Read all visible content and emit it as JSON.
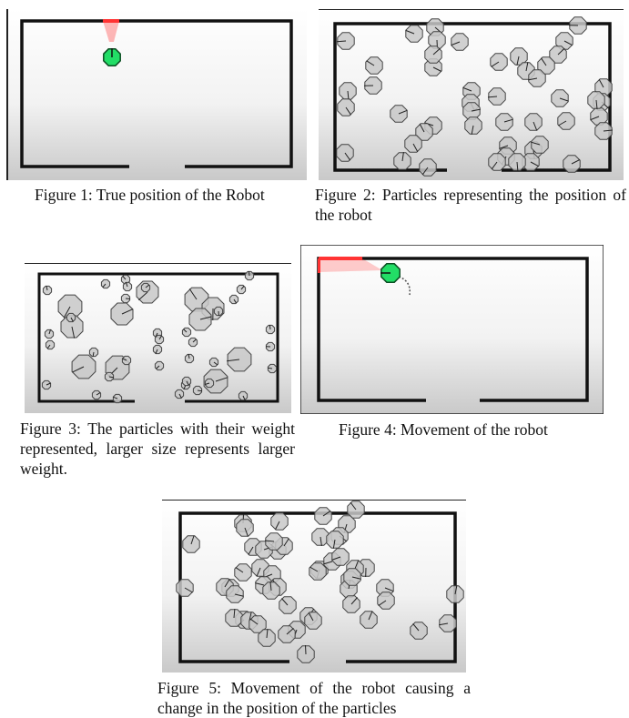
{
  "figures": [
    {
      "id": "fig1",
      "caption": "Figure 1: True position of the Robot"
    },
    {
      "id": "fig2",
      "caption": "Figure 2: Particles representing the position of the robot"
    },
    {
      "id": "fig3",
      "caption": "Figure 3: The particles with their weight represented, larger size represents larger weight."
    },
    {
      "id": "fig4",
      "caption": "Figure 4: Movement of the robot"
    },
    {
      "id": "fig5",
      "caption": "Figure 5: Movement of the robot causing a change in the position of the particles"
    }
  ],
  "colors": {
    "robot_fill": "#22dd66",
    "robot_stroke": "#0b4d22",
    "sensor_cone": "#ff3333",
    "wall": "#111111",
    "particle_fill": "#c8c8c8",
    "particle_stroke": "#444444",
    "panel_top": "#ffffff",
    "panel_bottom": "#c9c9c9"
  }
}
